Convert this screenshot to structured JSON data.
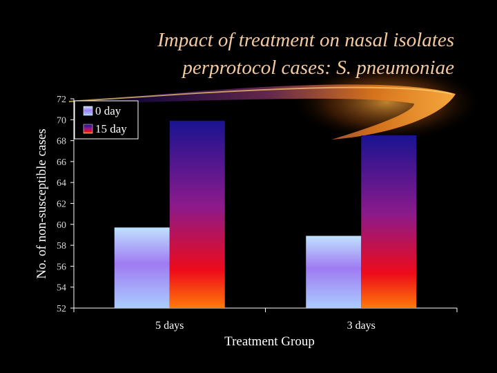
{
  "slide": {
    "title_line1": "Impact of treatment on nasal isolates",
    "title_line2": "perprotocol cases: S. pneumoniae"
  },
  "colors": {
    "background": "#000000",
    "title": "#f3c9a0",
    "series_0day": [
      "#bfe2ff",
      "#9f7bf2",
      "#aaccff"
    ],
    "series_15day": [
      "#1a1390",
      "#8a1a8c",
      "#ee0b1a",
      "#ff7a0a"
    ]
  },
  "chart_data": {
    "type": "bar",
    "title": "Impact of treatment on nasal isolates perprotocol cases: S. pneumoniae",
    "xlabel": "Treatment Group",
    "ylabel": "No. of non-susceptible cases",
    "categories": [
      "5 days",
      "3 days"
    ],
    "series": [
      {
        "name": "0 day",
        "values": [
          59.7,
          58.9
        ]
      },
      {
        "name": "15 day",
        "values": [
          69.9,
          68.5
        ]
      }
    ],
    "ylim": [
      52,
      72
    ],
    "yticks": [
      52,
      54,
      56,
      58,
      60,
      62,
      64,
      66,
      68,
      70,
      72
    ],
    "legend_position": "top-left",
    "grid": false
  }
}
